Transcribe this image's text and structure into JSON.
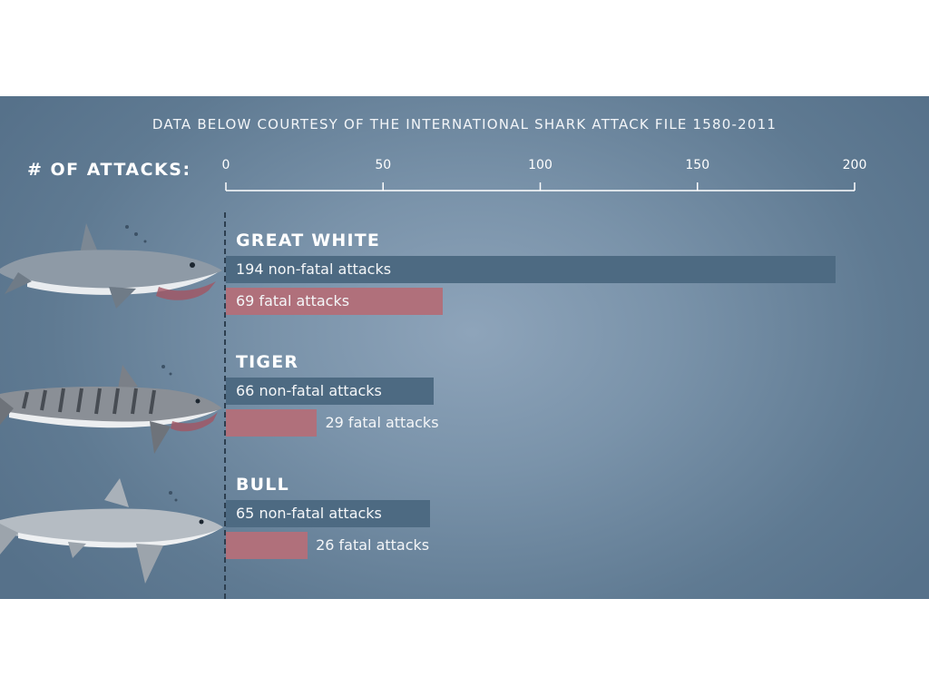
{
  "subtitle": "DATA BELOW COURTESY OF THE INTERNATIONAL SHARK ATTACK FILE 1580-2011",
  "axis_label": "# OF ATTACKS:",
  "chart_data": {
    "type": "bar",
    "orientation": "horizontal",
    "title": "",
    "xlabel": "# OF ATTACKS:",
    "xlim": [
      0,
      200
    ],
    "ticks": [
      0,
      50,
      100,
      150,
      200
    ],
    "tick_labels": [
      "0",
      "50",
      "100",
      "150",
      "200"
    ],
    "categories": [
      "GREAT WHITE",
      "TIGER",
      "BULL"
    ],
    "series": [
      {
        "key": "nonfatal",
        "values": [
          194,
          66,
          65
        ],
        "labels": [
          "194 non-fatal attacks",
          "66 non-fatal attacks",
          "65 non-fatal attacks"
        ],
        "color": "#4d6a82"
      },
      {
        "key": "fatal",
        "values": [
          69,
          29,
          26
        ],
        "labels": [
          "69 fatal attacks",
          "29 fatal attacks",
          "26 fatal attacks"
        ],
        "color": "#b0707b"
      }
    ]
  },
  "colors": {
    "background": "#7a93aa",
    "nonfatal": "#4d6a82",
    "fatal": "#b0707b",
    "text": "#ffffff"
  },
  "icons": [
    "great-white-shark-illustration",
    "tiger-shark-illustration",
    "bull-shark-illustration"
  ]
}
